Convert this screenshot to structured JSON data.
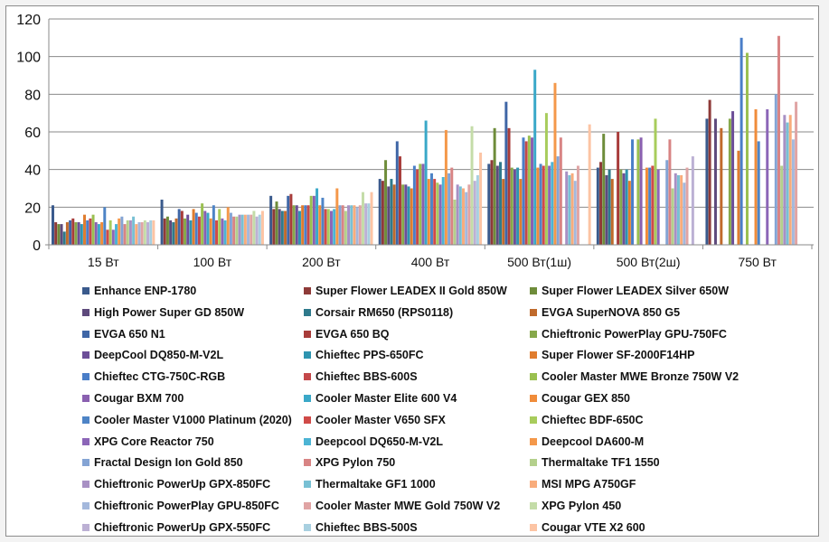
{
  "chart_data": {
    "type": "bar",
    "title": "",
    "xlabel": "",
    "ylabel": "",
    "ylim": [
      0,
      120
    ],
    "yticks": [
      "0",
      "20",
      "40",
      "60",
      "80",
      "100",
      "120"
    ],
    "grid": true,
    "legend_position": "bottom",
    "categories": [
      "15 Вт",
      "100 Вт",
      "200 Вт",
      "400 Вт",
      "500 Вт(1ш)",
      "500 Вт(2ш)",
      "750 Вт"
    ],
    "series": [
      {
        "name": "Enhance ENP-1780",
        "color": "#3a5a8c",
        "values": [
          21,
          24,
          26,
          35,
          43,
          41,
          67
        ]
      },
      {
        "name": "Super Flower LEADEX II Gold 850W",
        "color": "#8e3a38",
        "values": [
          12,
          14,
          19,
          34,
          45,
          44,
          77
        ]
      },
      {
        "name": "Super Flower LEADEX Silver 650W",
        "color": "#6e8c3a",
        "values": [
          11,
          15,
          23,
          45,
          62,
          59,
          null
        ]
      },
      {
        "name": "High Power Super GD 850W",
        "color": "#5e4a7c",
        "values": [
          11,
          13,
          19,
          31,
          42,
          37,
          67
        ]
      },
      {
        "name": "Corsair RM650 (RPS0118)",
        "color": "#2e7a8c",
        "values": [
          7,
          12,
          18,
          35,
          44,
          40,
          null
        ]
      },
      {
        "name": "EVGA SuperNOVA 850 G5",
        "color": "#c06a2c",
        "values": [
          12,
          14,
          18,
          32,
          35,
          35,
          62
        ]
      },
      {
        "name": "EVGA 650 N1",
        "color": "#3f66a6",
        "values": [
          13,
          19,
          26,
          55,
          76,
          null,
          null
        ]
      },
      {
        "name": "EVGA 650 BQ",
        "color": "#a83c3a",
        "values": [
          14,
          18,
          27,
          47,
          62,
          60,
          null
        ]
      },
      {
        "name": "Chieftronic PowerPlay GPU-750FC",
        "color": "#86a84a",
        "values": [
          12,
          14,
          21,
          32,
          41,
          40,
          67
        ]
      },
      {
        "name": "DeepCool DQ850-M-V2L",
        "color": "#6c4e98",
        "values": [
          12,
          16,
          21,
          32,
          40,
          38,
          71
        ]
      },
      {
        "name": "Chieftec PPS-650FC",
        "color": "#2e94b0",
        "values": [
          11,
          13,
          18,
          31,
          41,
          40,
          null
        ]
      },
      {
        "name": "Super Flower SF-2000F14HP",
        "color": "#e07c2e",
        "values": [
          16,
          19,
          21,
          30,
          35,
          34,
          50
        ]
      },
      {
        "name": "Chieftec CTG-750C-RGB",
        "color": "#4a7ec8",
        "values": [
          13,
          17,
          21,
          42,
          57,
          56,
          110
        ]
      },
      {
        "name": "Chieftec BBS-600S",
        "color": "#c4484a",
        "values": [
          14,
          15,
          21,
          40,
          55,
          null,
          null
        ]
      },
      {
        "name": "Cooler Master MWE Bronze 750W V2",
        "color": "#9ac050",
        "values": [
          16,
          22,
          26,
          43,
          58,
          56,
          102
        ]
      },
      {
        "name": "Cougar BXM 700",
        "color": "#8a60b0",
        "values": [
          12,
          18,
          26,
          43,
          57,
          57,
          null
        ]
      },
      {
        "name": "Cooler Master Elite 600 V4",
        "color": "#3aa8c8",
        "values": [
          11,
          17,
          30,
          66,
          93,
          null,
          null
        ]
      },
      {
        "name": "Cougar GEX 850",
        "color": "#f08c3a",
        "values": [
          12,
          14,
          21,
          35,
          41,
          41,
          72
        ]
      },
      {
        "name": "Cooler Master V1000 Platinum (2020)",
        "color": "#4e84c6",
        "values": [
          20,
          21,
          25,
          38,
          43,
          41,
          55
        ]
      },
      {
        "name": "Cooler Master V650 SFX",
        "color": "#d04a48",
        "values": [
          8,
          13,
          19,
          35,
          42,
          42,
          null
        ]
      },
      {
        "name": "Chieftec BDF-650C",
        "color": "#a8cc5c",
        "values": [
          13,
          19,
          19,
          33,
          70,
          67,
          null
        ]
      },
      {
        "name": "XPG Core Reactor 750",
        "color": "#8c66b8",
        "values": [
          8,
          14,
          18,
          32,
          42,
          40,
          72
        ]
      },
      {
        "name": "Deepcool DQ650-M-V2L",
        "color": "#4cb4d4",
        "values": [
          11,
          13,
          19,
          36,
          44,
          null,
          null
        ]
      },
      {
        "name": "Deepcool DA600-M",
        "color": "#f4984a",
        "values": [
          14,
          20,
          30,
          61,
          86,
          null,
          null
        ]
      },
      {
        "name": "Fractal Design Ion Gold 850",
        "color": "#84a4d4",
        "values": [
          15,
          17,
          21,
          38,
          47,
          45,
          80
        ]
      },
      {
        "name": "XPG Pylon 750",
        "color": "#d88484",
        "values": [
          11,
          15,
          21,
          41,
          57,
          56,
          111
        ]
      },
      {
        "name": "Thermaltake TF1 1550",
        "color": "#b4d08c",
        "values": [
          13,
          15,
          18,
          24,
          null,
          30,
          42
        ]
      },
      {
        "name": "Chieftronic PowerUp  GPX-850FC",
        "color": "#a890c4",
        "values": [
          13,
          16,
          21,
          32,
          39,
          38,
          69
        ]
      },
      {
        "name": "Thermaltake GF1 1000",
        "color": "#78c0d4",
        "values": [
          15,
          16,
          21,
          31,
          37,
          37,
          65
        ]
      },
      {
        "name": "MSI MPG A750GF",
        "color": "#f8ac7c",
        "values": [
          11,
          16,
          21,
          30,
          38,
          37,
          69
        ]
      },
      {
        "name": "Chieftronic PowerPlay GPU-850FC",
        "color": "#a4b8dc",
        "values": [
          12,
          16,
          20,
          28,
          34,
          33,
          56
        ]
      },
      {
        "name": "Cooler Master MWE Gold 750W V2",
        "color": "#e0a4a4",
        "values": [
          12,
          16,
          21,
          32,
          42,
          41,
          76
        ]
      },
      {
        "name": "XPG Pylon 450",
        "color": "#c4dca8",
        "values": [
          13,
          18,
          28,
          63,
          null,
          null,
          null
        ]
      },
      {
        "name": "Chieftronic PowerUp  GPX-550FC",
        "color": "#bcb0d4",
        "values": [
          12,
          15,
          22,
          34,
          null,
          47,
          null
        ]
      },
      {
        "name": "Chieftec BBS-500S",
        "color": "#a8d0e0",
        "values": [
          13,
          16,
          22,
          37,
          null,
          null,
          null
        ]
      },
      {
        "name": "Cougar VTE X2 600",
        "color": "#fcc4a4",
        "values": [
          13,
          18,
          28,
          49,
          64,
          null,
          null
        ]
      }
    ]
  }
}
